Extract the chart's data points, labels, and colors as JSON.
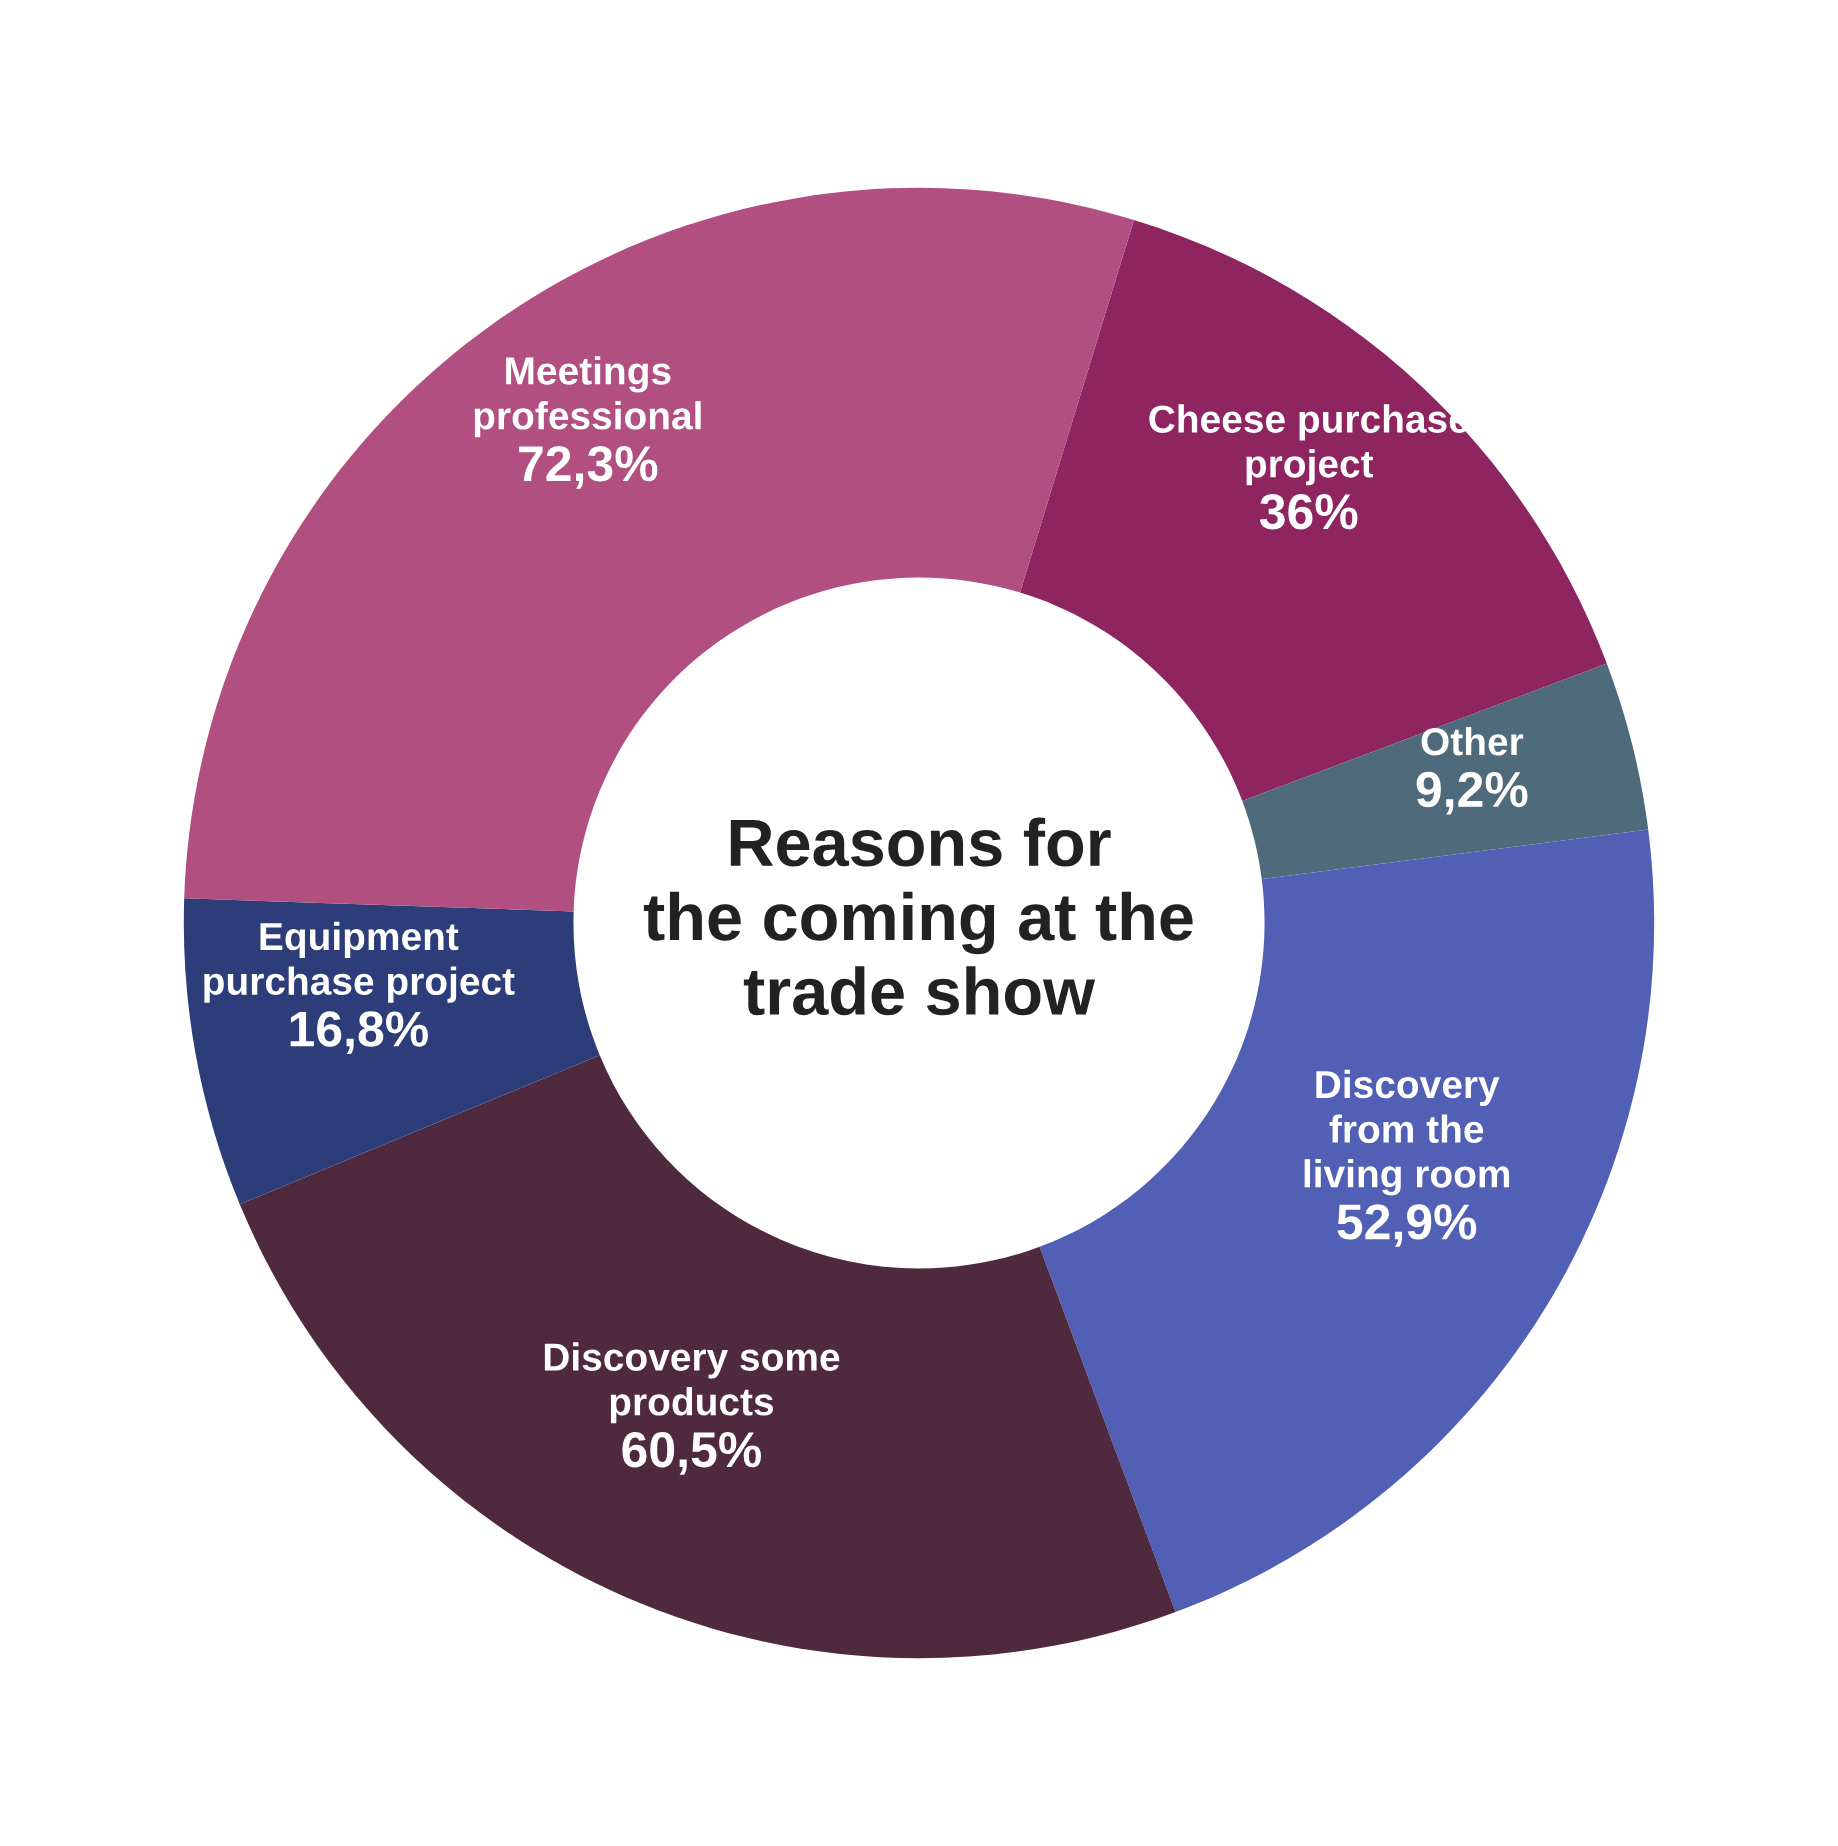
{
  "chart_data": {
    "type": "donut",
    "title": "Reasons for\nthe coming at the\ntrade show",
    "categories": [
      "Cheese purchase\nproject",
      "Other",
      "Discovery\nfrom the\nliving room",
      "Discovery some\nproducts",
      "Equipment\npurchase project",
      "Meetings\nprofessional"
    ],
    "values": [
      36,
      9.2,
      52.9,
      60.5,
      16.8,
      72.3
    ],
    "value_labels": [
      "36%",
      "9,2%",
      "52,9%",
      "60,5%",
      "16,8%",
      "72,3%"
    ],
    "colors": [
      "#8e2560",
      "#4f6a7a",
      "#5160b5",
      "#4f2a3e",
      "#2c3d7a",
      "#b04f80"
    ],
    "legend": false
  }
}
